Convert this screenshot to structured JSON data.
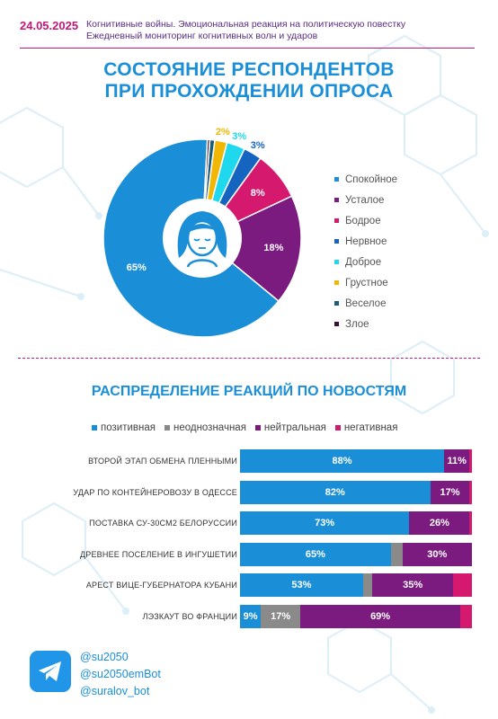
{
  "header": {
    "date": "24.05.2025",
    "line1": "Когнитивные войны. Эмоциональная реакция на политическую повестку",
    "line2": "Ежедневный мониторинг когнитивных волн и ударов"
  },
  "pie_title_line1": "СОСТОЯНИЕ РЕСПОНДЕНТОВ",
  "pie_title_line2": "ПРИ ПРОХОЖДЕНИИ ОПРОСА",
  "bar_title": "РАСПРЕДЕЛЕНИЕ РЕАКЦИЙ ПО НОВОСТЯМ",
  "icons": {
    "center": "woman-face-icon",
    "footer": "telegram-icon"
  },
  "chart_data": [
    {
      "type": "pie",
      "title": "СОСТОЯНИЕ РЕСПОНДЕНТОВ ПРИ ПРОХОЖДЕНИИ ОПРОСА",
      "legend_position": "right",
      "slices": [
        {
          "name": "Спокойное",
          "value": 65,
          "label": "65%",
          "color": "#1a8fd8"
        },
        {
          "name": "Усталое",
          "value": 18,
          "label": "18%",
          "color": "#7b1a7f"
        },
        {
          "name": "Бодрое",
          "value": 8,
          "label": "8%",
          "color": "#d4196f"
        },
        {
          "name": "Нервное",
          "value": 3,
          "label": "3%",
          "color": "#1565c0"
        },
        {
          "name": "Доброе",
          "value": 3,
          "label": "3%",
          "color": "#20d8ee"
        },
        {
          "name": "Грустное",
          "value": 2,
          "label": "2%",
          "color": "#f2b705"
        },
        {
          "name": "Веселое",
          "value": 0.8,
          "label": "",
          "color": "#1c5b7a"
        },
        {
          "name": "Злое",
          "value": 0.4,
          "label": "",
          "color": "#3b1230"
        }
      ]
    },
    {
      "type": "bar",
      "orientation": "horizontal",
      "stacked": true,
      "title": "РАСПРЕДЕЛЕНИЕ РЕАКЦИЙ ПО НОВОСТЯМ",
      "legend_position": "top",
      "series": [
        {
          "name": "позитивная",
          "color": "#1a8fd8"
        },
        {
          "name": "неоднозначная",
          "color": "#8a8a8a"
        },
        {
          "name": "нейтральная",
          "color": "#7b1a7f"
        },
        {
          "name": "негативная",
          "color": "#d4196f"
        }
      ],
      "rows": [
        {
          "category": "ВТОРОЙ ЭТАП ОБМЕНА ПЛЕННЫМИ",
          "values": [
            88,
            0,
            11,
            1
          ],
          "labels": [
            "88%",
            "",
            "11%",
            ""
          ]
        },
        {
          "category": "УДАР ПО КОНТЕЙНЕРОВОЗУ В ОДЕССЕ",
          "values": [
            82,
            0,
            17,
            1
          ],
          "labels": [
            "82%",
            "",
            "17%",
            ""
          ]
        },
        {
          "category": "ПОСТАВКА СУ-30СМ2 БЕЛОРУССИИ",
          "values": [
            73,
            0,
            26,
            1
          ],
          "labels": [
            "73%",
            "",
            "26%",
            ""
          ]
        },
        {
          "category": "ДРЕВНЕЕ ПОСЕЛЕНИЕ В ИНГУШЕТИИ",
          "values": [
            65,
            5,
            30,
            0
          ],
          "labels": [
            "65%",
            "",
            "30%",
            ""
          ]
        },
        {
          "category": "АРЕСТ ВИЦЕ-ГУБЕРНАТОРА КУБАНИ",
          "values": [
            53,
            4,
            35,
            8
          ],
          "labels": [
            "53%",
            "",
            "35%",
            ""
          ]
        },
        {
          "category": "ЛЭЗКАУТ ВО ФРАНЦИИ",
          "values": [
            9,
            17,
            69,
            5
          ],
          "labels": [
            "9%",
            "17%",
            "69%",
            ""
          ]
        }
      ]
    }
  ],
  "footer": {
    "handles": [
      "@su2050",
      "@su2050emBot",
      "@suralov_bot"
    ]
  }
}
